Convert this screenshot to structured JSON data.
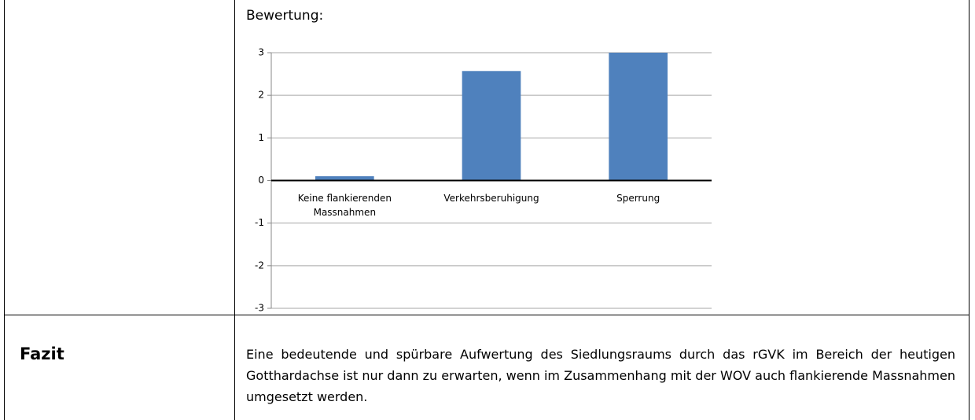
{
  "table": {
    "rows": [
      [
        null,
        "Bewertung:"
      ],
      [
        "Fazit",
        "Eine bedeutende und spürbare Aufwertung des Siedlungsraums durch das rGVK im Bereich der heutigen Gotthardachse ist nur dann zu erwarten, wenn im Zusammenhang mit der WOV auch flankierende Massnahmen umgesetzt werden."
      ]
    ]
  },
  "chart_data": {
    "type": "bar",
    "categories": [
      "Keine flankierenden Massnahmen",
      "Verkehrsberuhigung",
      "Sperrung"
    ],
    "values": [
      0.1,
      2.57,
      3
    ],
    "color": "#4f81bd",
    "ylim": [
      -3,
      3
    ],
    "yticks": [
      -3,
      -2,
      -1,
      0,
      1,
      2,
      3
    ],
    "grid": true
  }
}
